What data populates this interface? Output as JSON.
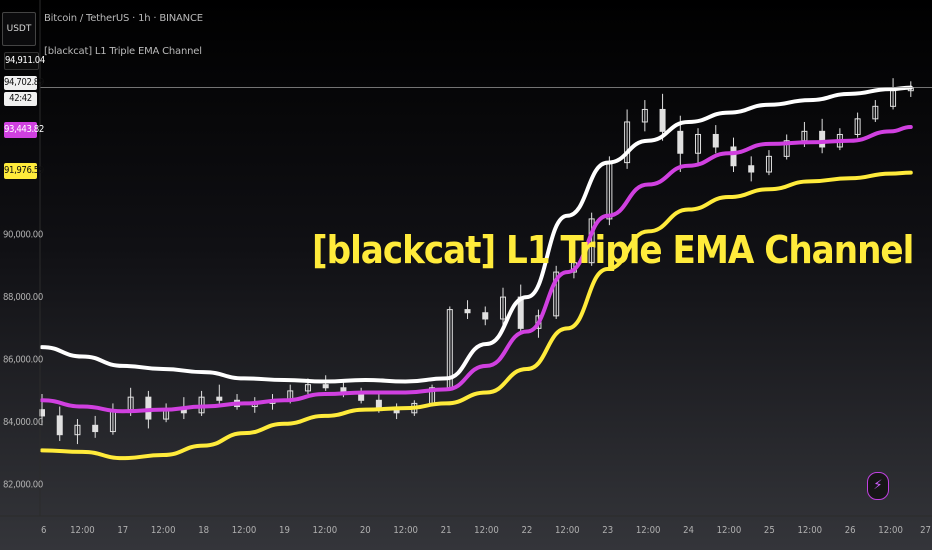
{
  "symbol": "USDT",
  "header": {
    "instrument": "Bitcoin / TetherUS · 1h · BINANCE",
    "indicator": "[blackcat] L1 Triple EMA Channel"
  },
  "overlay_title": "[blackcat] L1 Triple EMA Channel",
  "price_tags": {
    "high": "94,911.04",
    "last": "94,702.89",
    "countdown": "42:42",
    "mid_band": "93,443.82",
    "low_band": "91,976.59"
  },
  "colors": {
    "upper_band": "#ffffff",
    "mid_band": "#d040e0",
    "lower_band": "#ffeb3b",
    "candles": "#e0e0e0",
    "title": "#ffeb3b"
  },
  "chart_data": {
    "type": "line",
    "title": "[blackcat] L1 Triple EMA Channel",
    "xlabel": "",
    "ylabel": "",
    "ylim": [
      81000,
      97500
    ],
    "grid": false,
    "x_tick_labels": [
      "6",
      "12:00",
      "17",
      "12:00",
      "18",
      "12:00",
      "19",
      "12:00",
      "20",
      "12:00",
      "21",
      "12:00",
      "22",
      "12:00",
      "23",
      "12:00",
      "24",
      "12:00",
      "25",
      "12:00",
      "26",
      "12:00",
      "27"
    ],
    "y_tick_labels": [
      {
        "label": "82,000.00",
        "value": 82000
      },
      {
        "label": "84,000.00",
        "value": 84000
      },
      {
        "label": "86,000.00",
        "value": 86000
      },
      {
        "label": "88,000.00",
        "value": 88000
      },
      {
        "label": "90,000.00",
        "value": 90000
      }
    ],
    "x": [
      0,
      0.5,
      1,
      1.5,
      2,
      2.5,
      3,
      3.5,
      4,
      4.5,
      5,
      5.5,
      6,
      6.5,
      7,
      7.5,
      8,
      8.5,
      9,
      9.5,
      10,
      10.5,
      10.75
    ],
    "series": [
      {
        "values": [
          86400,
          86100,
          85800,
          85700,
          85600,
          85400,
          85350,
          85300,
          85350,
          85300,
          85400,
          86500,
          88000,
          90600,
          92300,
          93000,
          93600,
          93900,
          94150,
          94300,
          94500,
          94650,
          94700
        ]
      },
      {
        "values": [
          84700,
          84500,
          84350,
          84400,
          84500,
          84600,
          84700,
          84900,
          84950,
          84950,
          85050,
          85800,
          86900,
          88800,
          90600,
          91600,
          92200,
          92600,
          92900,
          92950,
          93000,
          93300,
          93440
        ]
      },
      {
        "values": [
          83100,
          83050,
          82850,
          82950,
          83250,
          83650,
          83950,
          84200,
          84400,
          84450,
          84600,
          84950,
          85700,
          87000,
          88900,
          90100,
          90800,
          91200,
          91450,
          91700,
          91800,
          91950,
          91980
        ]
      }
    ],
    "price_ohlc": [
      [
        84400,
        84900,
        83900,
        84200
      ],
      [
        84200,
        84500,
        83400,
        83600
      ],
      [
        83600,
        84100,
        83300,
        83900
      ],
      [
        83900,
        84200,
        83500,
        83700
      ],
      [
        83700,
        84600,
        83600,
        84400
      ],
      [
        84400,
        85100,
        84200,
        84800
      ],
      [
        84800,
        85000,
        83800,
        84100
      ],
      [
        84100,
        84600,
        84000,
        84400
      ],
      [
        84400,
        84800,
        84100,
        84300
      ],
      [
        84300,
        85000,
        84200,
        84800
      ],
      [
        84800,
        85200,
        84600,
        84700
      ],
      [
        84700,
        84900,
        84400,
        84500
      ],
      [
        84500,
        84800,
        84300,
        84600
      ],
      [
        84600,
        84900,
        84400,
        84700
      ],
      [
        84700,
        85200,
        84600,
        85000
      ],
      [
        85000,
        85400,
        84900,
        85200
      ],
      [
        85200,
        85500,
        85000,
        85100
      ],
      [
        85100,
        85300,
        84800,
        84900
      ],
      [
        84900,
        85100,
        84600,
        84700
      ],
      [
        84700,
        84900,
        84300,
        84400
      ],
      [
        84400,
        84600,
        84100,
        84300
      ],
      [
        84300,
        84700,
        84200,
        84600
      ],
      [
        84600,
        85200,
        84500,
        85100
      ],
      [
        85100,
        87700,
        85000,
        87600
      ],
      [
        87600,
        87900,
        87300,
        87500
      ],
      [
        87500,
        87700,
        87100,
        87300
      ],
      [
        87300,
        88300,
        87000,
        88000
      ],
      [
        88000,
        88400,
        86800,
        87000
      ],
      [
        87000,
        87600,
        86700,
        87400
      ],
      [
        87400,
        89000,
        87300,
        88800
      ],
      [
        88800,
        89400,
        88600,
        89100
      ],
      [
        89100,
        90700,
        89000,
        90500
      ],
      [
        90500,
        92500,
        90300,
        92300
      ],
      [
        92300,
        94000,
        92100,
        93600
      ],
      [
        93600,
        94300,
        93300,
        94000
      ],
      [
        94000,
        94500,
        93000,
        93300
      ],
      [
        93300,
        93800,
        92000,
        92600
      ],
      [
        92600,
        93400,
        92300,
        93200
      ],
      [
        93200,
        93500,
        92600,
        92800
      ],
      [
        92800,
        93100,
        92000,
        92200
      ],
      [
        92200,
        92500,
        91700,
        92000
      ],
      [
        92000,
        92700,
        91900,
        92500
      ],
      [
        92500,
        93200,
        92400,
        93000
      ],
      [
        93000,
        93600,
        92800,
        93300
      ],
      [
        93300,
        93700,
        92600,
        92800
      ],
      [
        92800,
        93400,
        92700,
        93200
      ],
      [
        93200,
        93900,
        93100,
        93700
      ],
      [
        93700,
        94300,
        93600,
        94100
      ],
      [
        94100,
        95000,
        94000,
        94600
      ],
      [
        94600,
        94900,
        94400,
        94700
      ]
    ],
    "price_label_values": {
      "high": 94911.04,
      "last": 94702.89,
      "mid_band": 93443.82,
      "low_band": 91976.59
    }
  }
}
